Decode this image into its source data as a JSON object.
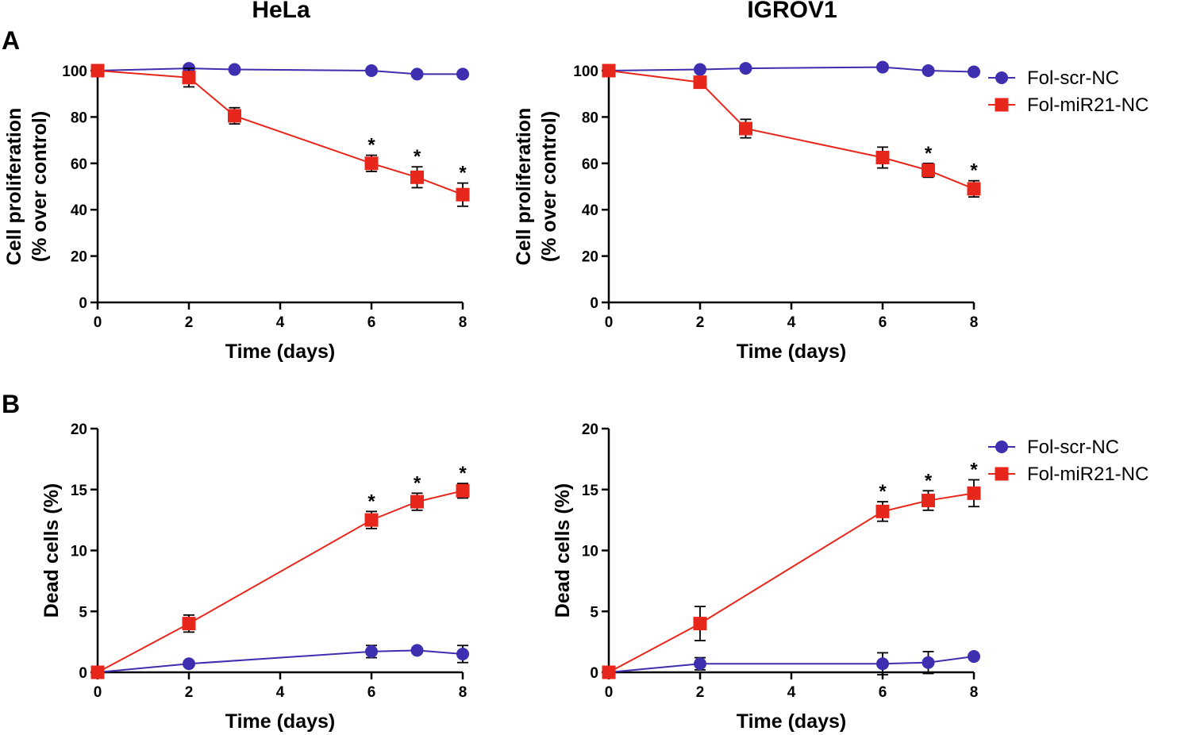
{
  "figure": {
    "column_titles": [
      "HeLa",
      "IGROV1"
    ],
    "panel_labels": [
      "A",
      "B"
    ],
    "colors": {
      "scr": "#3d2fb0",
      "mir": "#e8271c",
      "axis": "#000000"
    }
  },
  "chart_data": [
    {
      "id": "A-HeLa",
      "type": "line",
      "title": "HeLa",
      "panel": "A",
      "xlabel": "Time (days)",
      "ylabel": [
        "Cell proliferation",
        "(% over control)"
      ],
      "xlim": [
        0,
        8
      ],
      "ylim": [
        0,
        100
      ],
      "xticks": [
        0,
        2,
        4,
        6,
        8
      ],
      "yticks": [
        0,
        20,
        40,
        60,
        80,
        100
      ],
      "series": [
        {
          "name": "Fol-scr-NC",
          "marker": "circle",
          "color": "#3d2fb0",
          "x": [
            0,
            2,
            3,
            6,
            7,
            8
          ],
          "y": [
            100,
            101,
            100.5,
            100,
            98.5,
            98.5
          ],
          "err": [
            0,
            0,
            0,
            0,
            0,
            0
          ]
        },
        {
          "name": "Fol-miR21-NC",
          "marker": "square",
          "color": "#e8271c",
          "x": [
            0,
            2,
            3,
            6,
            7,
            8
          ],
          "y": [
            100,
            97,
            80.5,
            60,
            54,
            46.5
          ],
          "err": [
            0,
            4,
            3.5,
            3.5,
            4.5,
            5
          ]
        }
      ],
      "significance": [
        {
          "x": 6,
          "label": "*"
        },
        {
          "x": 7,
          "label": "*"
        },
        {
          "x": 8,
          "label": "*"
        }
      ],
      "legend": false
    },
    {
      "id": "A-IGROV1",
      "type": "line",
      "title": "IGROV1",
      "panel": "A",
      "xlabel": "Time (days)",
      "ylabel": [
        "Cell proliferation",
        "(% over control)"
      ],
      "xlim": [
        0,
        8
      ],
      "ylim": [
        0,
        100
      ],
      "xticks": [
        0,
        2,
        4,
        6,
        8
      ],
      "yticks": [
        0,
        20,
        40,
        60,
        80,
        100
      ],
      "series": [
        {
          "name": "Fol-scr-NC",
          "marker": "circle",
          "color": "#3d2fb0",
          "x": [
            0,
            2,
            3,
            6,
            7,
            8
          ],
          "y": [
            100,
            100.5,
            101,
            101.5,
            100,
            99.5
          ],
          "err": [
            0,
            0,
            0,
            0,
            0,
            0
          ]
        },
        {
          "name": "Fol-miR21-NC",
          "marker": "square",
          "color": "#e8271c",
          "x": [
            0,
            2,
            3,
            6,
            7,
            8
          ],
          "y": [
            100,
            95,
            75,
            62.5,
            57,
            49
          ],
          "err": [
            0,
            1.5,
            4,
            4.5,
            3,
            3.5
          ]
        }
      ],
      "significance": [
        {
          "x": 7,
          "label": "*"
        },
        {
          "x": 8,
          "label": "*"
        }
      ],
      "legend": true,
      "legend_position": "top-right-outside"
    },
    {
      "id": "B-HeLa",
      "type": "line",
      "title": "",
      "panel": "B",
      "xlabel": "Time (days)",
      "ylabel": [
        "Dead cells (%)"
      ],
      "xlim": [
        0,
        8
      ],
      "ylim": [
        0,
        20
      ],
      "xticks": [
        0,
        2,
        4,
        6,
        8
      ],
      "yticks": [
        0,
        5,
        10,
        15,
        20
      ],
      "series": [
        {
          "name": "Fol-scr-NC",
          "marker": "circle",
          "color": "#3d2fb0",
          "x": [
            0,
            2,
            6,
            7,
            8
          ],
          "y": [
            0,
            0.7,
            1.7,
            1.8,
            1.5
          ],
          "err": [
            0,
            0,
            0.5,
            0,
            0.7
          ]
        },
        {
          "name": "Fol-miR21-NC",
          "marker": "square",
          "color": "#e8271c",
          "x": [
            0,
            2,
            6,
            7,
            8
          ],
          "y": [
            0,
            4,
            12.5,
            14,
            14.9
          ],
          "err": [
            0,
            0.7,
            0.7,
            0.7,
            0.6
          ]
        }
      ],
      "significance": [
        {
          "x": 6,
          "label": "*"
        },
        {
          "x": 7,
          "label": "*"
        },
        {
          "x": 8,
          "label": "*"
        }
      ],
      "legend": false
    },
    {
      "id": "B-IGROV1",
      "type": "line",
      "title": "",
      "panel": "B",
      "xlabel": "Time (days)",
      "ylabel": [
        "Dead cells (%)"
      ],
      "xlim": [
        0,
        8
      ],
      "ylim": [
        0,
        20
      ],
      "xticks": [
        0,
        2,
        4,
        6,
        8
      ],
      "yticks": [
        0,
        5,
        10,
        15,
        20
      ],
      "series": [
        {
          "name": "Fol-scr-NC",
          "marker": "circle",
          "color": "#3d2fb0",
          "x": [
            0,
            2,
            6,
            7,
            8
          ],
          "y": [
            0,
            0.7,
            0.7,
            0.8,
            1.3
          ],
          "err": [
            0,
            0.5,
            0.9,
            0.9,
            0
          ]
        },
        {
          "name": "Fol-miR21-NC",
          "marker": "square",
          "color": "#e8271c",
          "x": [
            0,
            2,
            6,
            7,
            8
          ],
          "y": [
            0,
            4,
            13.2,
            14.1,
            14.7
          ],
          "err": [
            0,
            1.4,
            0.8,
            0.8,
            1.1
          ]
        }
      ],
      "significance": [
        {
          "x": 6,
          "label": "*"
        },
        {
          "x": 7,
          "label": "*"
        },
        {
          "x": 8,
          "label": "*"
        }
      ],
      "legend": true,
      "legend_position": "top-right-outside"
    }
  ]
}
